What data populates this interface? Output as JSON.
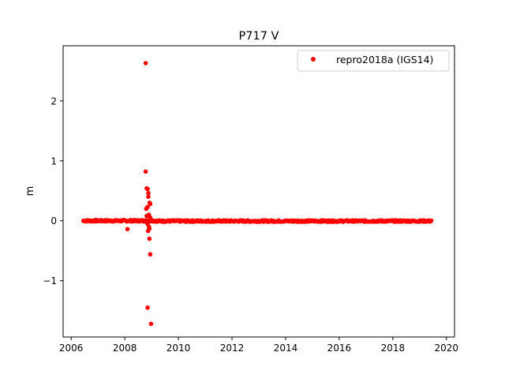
{
  "chart_data": {
    "type": "scatter",
    "title": "P717 V",
    "xlabel": "",
    "ylabel": "m",
    "xlim": [
      2005.7,
      2020.3
    ],
    "ylim": [
      -1.94,
      2.92
    ],
    "xticks": [
      2006,
      2008,
      2010,
      2012,
      2014,
      2016,
      2018,
      2020
    ],
    "xtick_labels": [
      "2006",
      "2008",
      "2010",
      "2012",
      "2014",
      "2016",
      "2018",
      "2020"
    ],
    "yticks": [
      -1,
      0,
      1,
      2
    ],
    "ytick_labels": [
      "−1",
      "0",
      "1",
      "2"
    ],
    "grid": false,
    "legend_position": "top-right",
    "series": [
      {
        "name": "repro2018a (IGS14)",
        "color": "#ff0000",
        "marker": "circle",
        "baseline": {
          "x_start": 2006.45,
          "x_end": 2009.2,
          "y": 0.0,
          "noise": 0.015
        },
        "baseline2": {
          "x_start": 2009.2,
          "x_end": 2019.45,
          "y": -0.005,
          "noise": 0.015
        },
        "points": [
          [
            2008.78,
            2.63
          ],
          [
            2008.78,
            0.82
          ],
          [
            2008.82,
            0.54
          ],
          [
            2008.85,
            0.53
          ],
          [
            2008.88,
            0.46
          ],
          [
            2008.88,
            0.4
          ],
          [
            2008.93,
            0.3
          ],
          [
            2008.8,
            0.2
          ],
          [
            2008.85,
            0.23
          ],
          [
            2008.95,
            0.28
          ],
          [
            2008.82,
            0.08
          ],
          [
            2008.9,
            0.1
          ],
          [
            2008.95,
            0.05
          ],
          [
            2008.98,
            0.02
          ],
          [
            2008.85,
            -0.05
          ],
          [
            2008.9,
            -0.1
          ],
          [
            2008.92,
            -0.13
          ],
          [
            2008.87,
            -0.17
          ],
          [
            2008.92,
            -0.3
          ],
          [
            2008.95,
            -0.56
          ],
          [
            2008.1,
            -0.14
          ],
          [
            2008.85,
            -1.45
          ],
          [
            2008.98,
            -1.72
          ]
        ]
      }
    ]
  }
}
